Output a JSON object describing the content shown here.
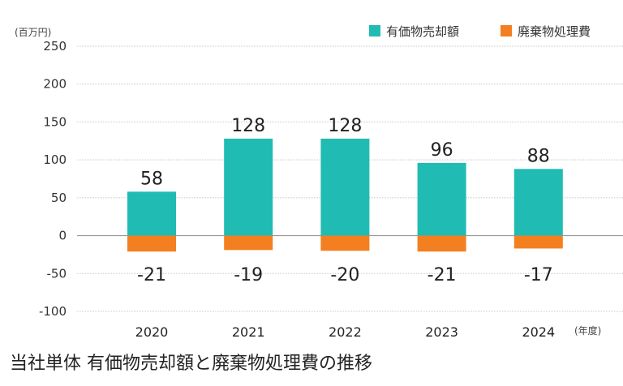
{
  "chart_data": {
    "type": "bar",
    "title": "当社単体 有価物売却額と廃棄物処理費の推移",
    "ylabel": "(百万円)",
    "xlabel": "(年度)",
    "categories": [
      "2020",
      "2021",
      "2022",
      "2023",
      "2024"
    ],
    "series": [
      {
        "name": "有価物売却額",
        "color": "#20bbb3",
        "values": [
          58,
          128,
          128,
          96,
          88
        ]
      },
      {
        "name": "廃棄物処理費",
        "color": "#f47f20",
        "values": [
          -21,
          -19,
          -20,
          -21,
          -17
        ]
      }
    ],
    "ylim": [
      -100,
      250
    ],
    "yticks": [
      250,
      200,
      150,
      100,
      50,
      0,
      -50,
      -100
    ],
    "grid": true,
    "legend": "top-right"
  }
}
